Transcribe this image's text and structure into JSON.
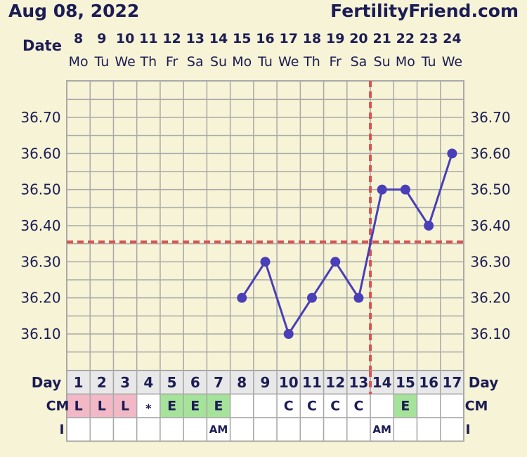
{
  "header": {
    "date": "Aug 08, 2022",
    "brand": "FertilityFriend.com"
  },
  "labels": {
    "date": "Date",
    "day": "Day",
    "cm": "CM",
    "i": "I"
  },
  "colors": {
    "background": "#f6f3d6",
    "grid": "#a9a9a9",
    "line": "#4a3fb8",
    "coverline": "#d9534f",
    "text": "#1c1c55",
    "cm_pink": "#f2b8c6",
    "cm_green": "#a6e39a",
    "day_row": "#e8e8e8",
    "cell_white": "#ffffff"
  },
  "chart_data": {
    "type": "line",
    "dates": [
      "8",
      "9",
      "10",
      "11",
      "12",
      "13",
      "14",
      "15",
      "16",
      "17",
      "18",
      "19",
      "20",
      "21",
      "22",
      "23",
      "24"
    ],
    "weekdays": [
      "Mo",
      "Tu",
      "We",
      "Th",
      "Fr",
      "Sa",
      "Su",
      "Mo",
      "Tu",
      "We",
      "Th",
      "Fr",
      "Sa",
      "Su",
      "Mo",
      "Tu",
      "We"
    ],
    "cycle_days": [
      "1",
      "2",
      "3",
      "4",
      "5",
      "6",
      "7",
      "8",
      "9",
      "10",
      "11",
      "12",
      "13",
      "14",
      "15",
      "16",
      "17"
    ],
    "temperatures": [
      null,
      null,
      null,
      null,
      null,
      null,
      null,
      36.2,
      36.3,
      36.1,
      36.2,
      36.3,
      36.2,
      36.5,
      36.5,
      36.4,
      36.6
    ],
    "y_ticks": [
      "36.70",
      "36.60",
      "36.50",
      "36.40",
      "36.30",
      "36.20",
      "36.10"
    ],
    "ylim": [
      36.0,
      36.8
    ],
    "coverline": 36.355,
    "ovulation_after_day": 13,
    "cm": [
      "L",
      "L",
      "L",
      "*",
      "E",
      "E",
      "E",
      "",
      "",
      "C",
      "C",
      "C",
      "C",
      "",
      "E",
      "",
      ""
    ],
    "i": [
      "",
      "",
      "",
      "",
      "",
      "",
      "AM",
      "",
      "",
      "",
      "",
      "",
      "",
      "AM",
      "",
      "",
      ""
    ],
    "grid": true
  }
}
